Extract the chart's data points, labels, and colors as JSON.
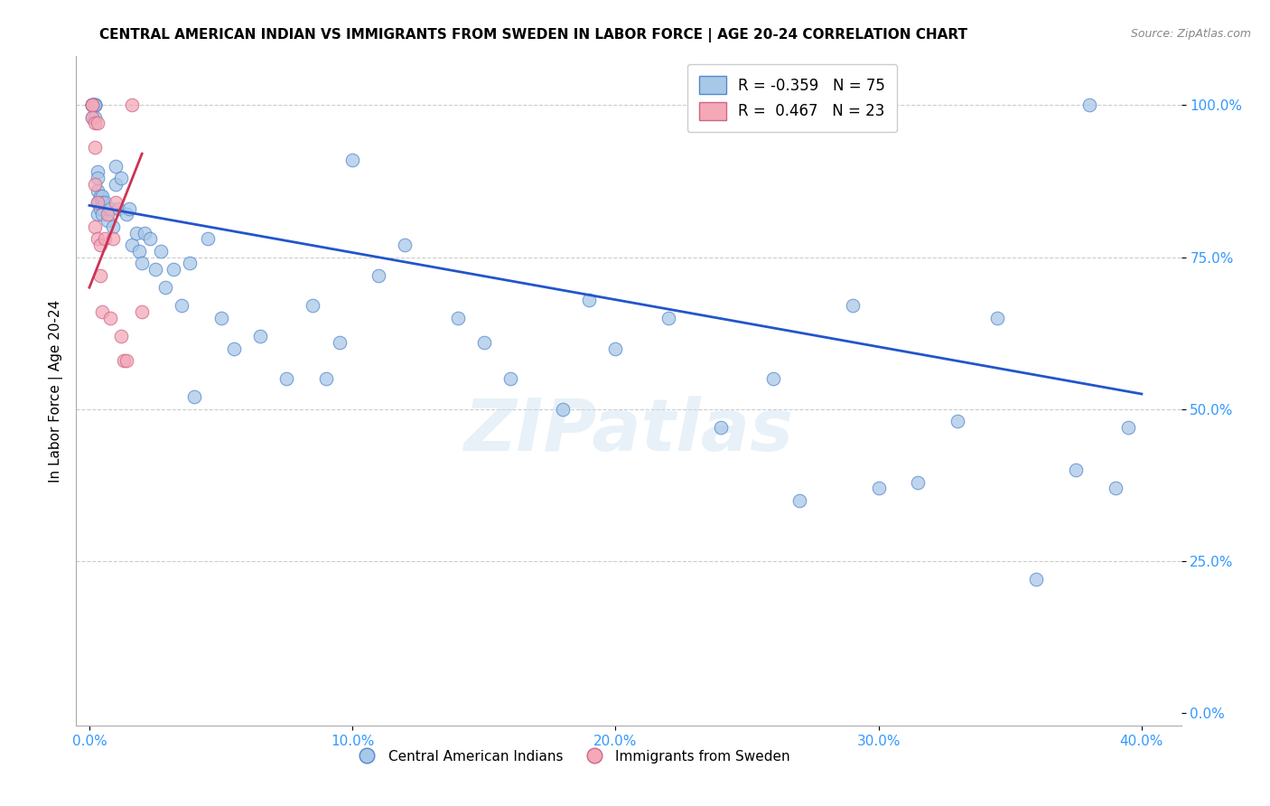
{
  "title": "CENTRAL AMERICAN INDIAN VS IMMIGRANTS FROM SWEDEN IN LABOR FORCE | AGE 20-24 CORRELATION CHART",
  "source": "Source: ZipAtlas.com",
  "ylabel": "In Labor Force | Age 20-24",
  "x_tick_labels": [
    "0.0%",
    "10.0%",
    "20.0%",
    "30.0%",
    "40.0%"
  ],
  "y_tick_labels": [
    "0.0%",
    "25.0%",
    "50.0%",
    "75.0%",
    "100.0%"
  ],
  "xlim": [
    -0.005,
    0.415
  ],
  "ylim": [
    -0.02,
    1.08
  ],
  "blue_r": -0.359,
  "blue_n": 75,
  "pink_r": 0.467,
  "pink_n": 23,
  "blue_color": "#a8c8e8",
  "pink_color": "#f4a8b8",
  "blue_edge_color": "#5588cc",
  "pink_edge_color": "#cc6688",
  "blue_line_color": "#2255cc",
  "pink_line_color": "#cc3355",
  "legend_label_blue": "Central American Indians",
  "legend_label_pink": "Immigrants from Sweden",
  "watermark": "ZIPatlas",
  "blue_points_x": [
    0.001,
    0.001,
    0.001,
    0.001,
    0.001,
    0.002,
    0.002,
    0.002,
    0.002,
    0.002,
    0.002,
    0.003,
    0.003,
    0.003,
    0.003,
    0.003,
    0.004,
    0.004,
    0.005,
    0.005,
    0.005,
    0.006,
    0.007,
    0.008,
    0.009,
    0.01,
    0.01,
    0.011,
    0.012,
    0.014,
    0.015,
    0.016,
    0.018,
    0.019,
    0.02,
    0.021,
    0.023,
    0.025,
    0.027,
    0.029,
    0.032,
    0.035,
    0.038,
    0.04,
    0.045,
    0.05,
    0.055,
    0.065,
    0.075,
    0.085,
    0.09,
    0.095,
    0.1,
    0.11,
    0.12,
    0.14,
    0.15,
    0.16,
    0.18,
    0.19,
    0.2,
    0.22,
    0.24,
    0.26,
    0.27,
    0.29,
    0.3,
    0.315,
    0.33,
    0.345,
    0.36,
    0.375,
    0.38,
    0.39,
    0.395
  ],
  "blue_points_y": [
    1.0,
    1.0,
    1.0,
    1.0,
    0.98,
    1.0,
    1.0,
    1.0,
    1.0,
    1.0,
    0.98,
    0.89,
    0.88,
    0.86,
    0.84,
    0.82,
    0.85,
    0.83,
    0.85,
    0.84,
    0.82,
    0.84,
    0.81,
    0.83,
    0.8,
    0.9,
    0.87,
    0.83,
    0.88,
    0.82,
    0.83,
    0.77,
    0.79,
    0.76,
    0.74,
    0.79,
    0.78,
    0.73,
    0.76,
    0.7,
    0.73,
    0.67,
    0.74,
    0.52,
    0.78,
    0.65,
    0.6,
    0.62,
    0.55,
    0.67,
    0.55,
    0.61,
    0.91,
    0.72,
    0.77,
    0.65,
    0.61,
    0.55,
    0.5,
    0.68,
    0.6,
    0.65,
    0.47,
    0.55,
    0.35,
    0.67,
    0.37,
    0.38,
    0.48,
    0.65,
    0.22,
    0.4,
    1.0,
    0.37,
    0.47
  ],
  "pink_points_x": [
    0.001,
    0.001,
    0.001,
    0.002,
    0.002,
    0.002,
    0.002,
    0.003,
    0.003,
    0.003,
    0.004,
    0.004,
    0.005,
    0.006,
    0.007,
    0.008,
    0.009,
    0.01,
    0.012,
    0.013,
    0.014,
    0.016,
    0.02
  ],
  "pink_points_y": [
    1.0,
    1.0,
    0.98,
    0.97,
    0.93,
    0.87,
    0.8,
    0.97,
    0.84,
    0.78,
    0.77,
    0.72,
    0.66,
    0.78,
    0.82,
    0.65,
    0.78,
    0.84,
    0.62,
    0.58,
    0.58,
    1.0,
    0.66
  ],
  "blue_trend_x": [
    0.0,
    0.4
  ],
  "blue_trend_y": [
    0.835,
    0.525
  ],
  "pink_trend_x": [
    0.0,
    0.02
  ],
  "pink_trend_y": [
    0.7,
    0.92
  ]
}
